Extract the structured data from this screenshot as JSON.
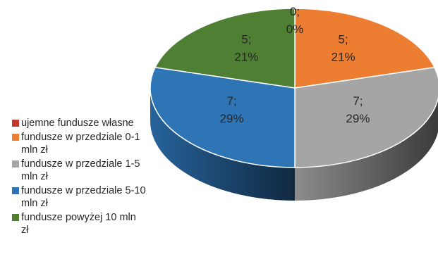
{
  "chart_data": {
    "type": "pie",
    "style": "3d",
    "categories": [
      "ujemne fundusze własne",
      "fundusze w przedziale 0-1 mln zł",
      "fundusze w przedziale 1-5 mln zł",
      "fundusze w przedziale 5-10 mln zł",
      "fundusze powyżej 10 mln zł"
    ],
    "values": [
      0,
      5,
      7,
      7,
      5
    ],
    "percent_labels": [
      "0%",
      "21%",
      "29%",
      "29%",
      "21%"
    ],
    "colors": [
      "#c0392b",
      "#ed7d31",
      "#a5a5a5",
      "#2e75b6",
      "#4e7f32"
    ],
    "legend_position": "left",
    "legend": {
      "items": [
        {
          "label": "ujemne fundusze własne",
          "color": "#c0392b"
        },
        {
          "label": "fundusze w przedziale 0-1 mln zł",
          "color": "#ed7d31"
        },
        {
          "label": "fundusze w przedziale 1-5 mln zł",
          "color": "#a5a5a5"
        },
        {
          "label": "fundusze w przedziale 5-10 mln zł",
          "color": "#2e75b6"
        },
        {
          "label": "fundusze powyżej 10 mln zł",
          "color": "#4e7f32"
        }
      ]
    }
  }
}
